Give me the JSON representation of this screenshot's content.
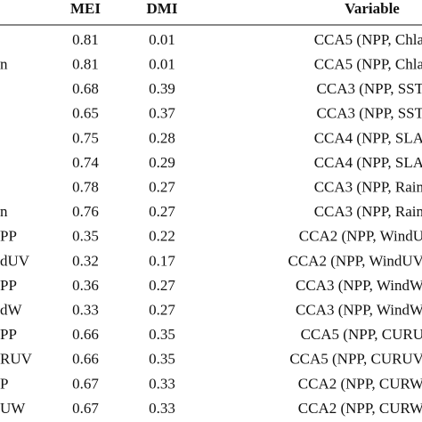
{
  "table": {
    "header": [
      "MEI",
      "DMI",
      "Variable"
    ],
    "rows": [
      {
        "mei": "0.81",
        "dmi": "0.01",
        "variable": "CCA5 (NPP, Chla"
      },
      {
        "stub": "n",
        "mei": "0.81",
        "dmi": "0.01",
        "variable": "CCA5 (NPP, Chla"
      },
      {
        "mei": "0.68",
        "dmi": "0.39",
        "variable": "CCA3 (NPP, SST"
      },
      {
        "mei": "0.65",
        "dmi": "0.37",
        "variable": "CCA3 (NPP, SST"
      },
      {
        "mei": "0.75",
        "dmi": "0.28",
        "variable": "CCA4 (NPP, SLA"
      },
      {
        "mei": "0.74",
        "dmi": "0.29",
        "variable": "CCA4 (NPP, SLA"
      },
      {
        "mei": "0.78",
        "dmi": "0.27",
        "variable": "CCA3 (NPP, Rain"
      },
      {
        "stub": "n",
        "mei": "0.76",
        "dmi": "0.27",
        "variable": "CCA3 (NPP, Rain"
      },
      {
        "stub": "PP",
        "mei": "0.35",
        "dmi": "0.22",
        "variable": "CCA2 (NPP, WindU"
      },
      {
        "stub": "dUV",
        "mei": "0.32",
        "dmi": "0.17",
        "variable": "CCA2 (NPP, WindUV"
      },
      {
        "stub": "PP",
        "mei": "0.36",
        "dmi": "0.27",
        "variable": "CCA3 (NPP, WindW"
      },
      {
        "stub": "dW",
        "mei": "0.33",
        "dmi": "0.27",
        "variable": "CCA3 (NPP, WindW"
      },
      {
        "stub": "PP",
        "mei": "0.66",
        "dmi": "0.35",
        "variable": "CCA5 (NPP, CURU"
      },
      {
        "stub": "RUV",
        "mei": "0.66",
        "dmi": "0.35",
        "variable": "CCA5 (NPP, CURUV"
      },
      {
        "stub": "P",
        "mei": "0.67",
        "dmi": "0.33",
        "variable": "CCA2 (NPP, CURW"
      },
      {
        "stub": "UW",
        "mei": "0.67",
        "dmi": "0.33",
        "variable": "CCA2 (NPP, CURW"
      }
    ]
  }
}
